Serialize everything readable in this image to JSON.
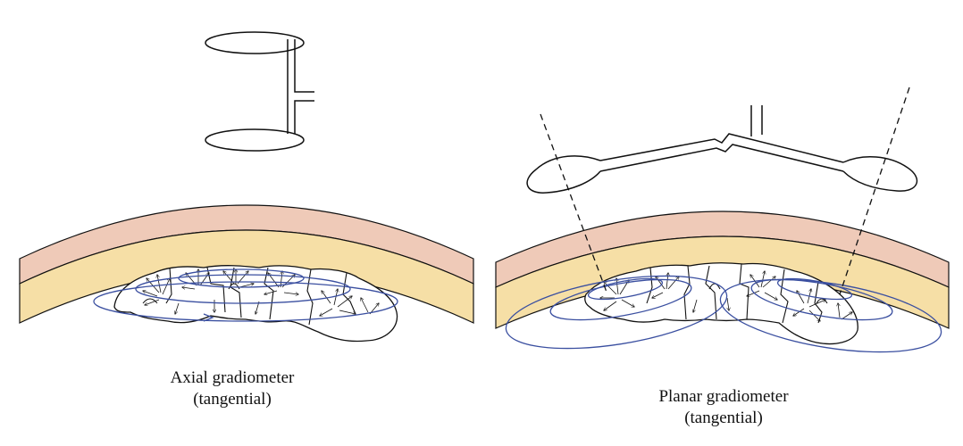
{
  "panels": [
    {
      "name": "axial",
      "caption_line1": "Axial gradiometer",
      "caption_line2": "(tangential)"
    },
    {
      "name": "planar",
      "caption_line1": "Planar gradiometer",
      "caption_line2": "(tangential)"
    }
  ],
  "colors": {
    "scalp": "#efcab8",
    "skull": "#f6dfa6",
    "field_lines": "#3a4fa0",
    "outline": "#111111"
  }
}
